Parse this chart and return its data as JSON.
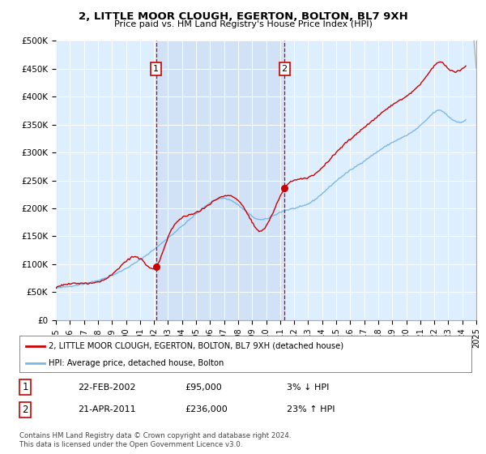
{
  "title": "2, LITTLE MOOR CLOUGH, EGERTON, BOLTON, BL7 9XH",
  "subtitle": "Price paid vs. HM Land Registry's House Price Index (HPI)",
  "legend_line1": "2, LITTLE MOOR CLOUGH, EGERTON, BOLTON, BL7 9XH (detached house)",
  "legend_line2": "HPI: Average price, detached house, Bolton",
  "footnote": "Contains HM Land Registry data © Crown copyright and database right 2024.\nThis data is licensed under the Open Government Licence v3.0.",
  "marker1_label": "1",
  "marker1_date": "22-FEB-2002",
  "marker1_price": "£95,000",
  "marker1_hpi": "3% ↓ HPI",
  "marker2_label": "2",
  "marker2_date": "21-APR-2011",
  "marker2_price": "£236,000",
  "marker2_hpi": "23% ↑ HPI",
  "hpi_color": "#7ab8e8",
  "price_color": "#cc0000",
  "background_color": "#ddeeff",
  "vline_color": "#cc0000",
  "shade_color": "#ccddf5",
  "marker1_x": 2002.14,
  "marker2_x": 2011.31,
  "marker1_y": 95000,
  "marker2_y": 236000,
  "xmin": 1995,
  "xmax": 2025,
  "ymin": 0,
  "ymax": 500000,
  "yticks": [
    0,
    50000,
    100000,
    150000,
    200000,
    250000,
    300000,
    350000,
    400000,
    450000,
    500000
  ],
  "ytick_labels": [
    "£0",
    "£50K",
    "£100K",
    "£150K",
    "£200K",
    "£250K",
    "£300K",
    "£350K",
    "£400K",
    "£450K",
    "£500K"
  ],
  "xticks": [
    1995,
    1996,
    1997,
    1998,
    1999,
    2000,
    2001,
    2002,
    2003,
    2004,
    2005,
    2006,
    2007,
    2008,
    2009,
    2010,
    2011,
    2012,
    2013,
    2014,
    2015,
    2016,
    2017,
    2018,
    2019,
    2020,
    2021,
    2022,
    2023,
    2024,
    2025
  ]
}
